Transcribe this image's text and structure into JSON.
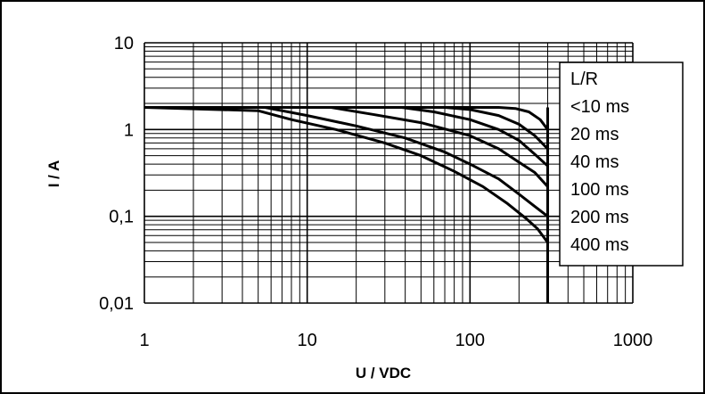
{
  "chart_data": {
    "type": "line",
    "title": "",
    "xlabel": "U / VDC",
    "ylabel": "I / A",
    "x_scale": "log",
    "y_scale": "log",
    "xlim": [
      1,
      1000
    ],
    "ylim": [
      0.01,
      10
    ],
    "x_ticks": [
      "1",
      "10",
      "100",
      "1000"
    ],
    "y_ticks": [
      "10",
      "1",
      "0,1",
      "0,01"
    ],
    "grid": true,
    "legend_position": "right",
    "legend_title": "L/R",
    "series": [
      {
        "name": "<10 ms",
        "x": [
          1,
          150,
          190,
          230,
          270,
          300
        ],
        "y": [
          1.8,
          1.8,
          1.75,
          1.6,
          1.3,
          1.0
        ]
      },
      {
        "name": "20 ms",
        "x": [
          1,
          70,
          100,
          150,
          200,
          250,
          300
        ],
        "y": [
          1.8,
          1.8,
          1.7,
          1.45,
          1.15,
          0.85,
          0.6
        ]
      },
      {
        "name": "40 ms",
        "x": [
          1,
          38,
          60,
          100,
          150,
          200,
          250,
          300
        ],
        "y": [
          1.8,
          1.8,
          1.6,
          1.3,
          1.0,
          0.75,
          0.52,
          0.38
        ]
      },
      {
        "name": "100 ms",
        "x": [
          1,
          14,
          25,
          50,
          100,
          150,
          200,
          250,
          300
        ],
        "y": [
          1.8,
          1.8,
          1.5,
          1.2,
          0.85,
          0.6,
          0.42,
          0.32,
          0.22
        ]
      },
      {
        "name": "200 ms",
        "x": [
          1,
          5.5,
          10,
          20,
          40,
          70,
          100,
          150,
          200,
          250,
          300
        ],
        "y": [
          1.8,
          1.8,
          1.45,
          1.1,
          0.8,
          0.55,
          0.4,
          0.27,
          0.18,
          0.13,
          0.1
        ]
      },
      {
        "name": "400 ms",
        "x": [
          1,
          5,
          8,
          15,
          30,
          50,
          80,
          120,
          170,
          220,
          260,
          300
        ],
        "y": [
          1.8,
          1.65,
          1.3,
          1.0,
          0.7,
          0.5,
          0.33,
          0.22,
          0.14,
          0.095,
          0.072,
          0.05
        ]
      }
    ],
    "colors": {
      "lines": "#000000",
      "grid": "#000000",
      "background": "#ffffff"
    }
  }
}
